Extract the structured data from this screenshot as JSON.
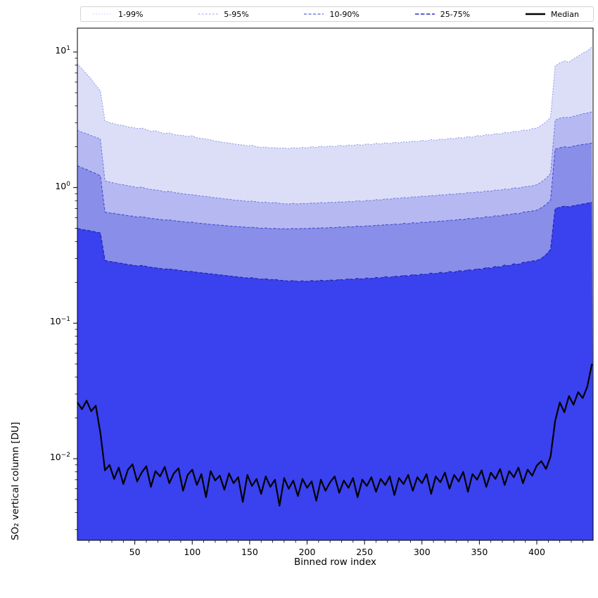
{
  "figure": {
    "background": "#ffffff"
  },
  "legend": {
    "entries": [
      {
        "label": "1-99%",
        "color": "#c6c9f3",
        "dash": "1.5,2.5",
        "width": 1.1
      },
      {
        "label": "5-95%",
        "color": "#9298ea",
        "dash": "2.5,2.5",
        "width": 1.1
      },
      {
        "label": "10-90%",
        "color": "#5b61db",
        "dash": "4,2.5",
        "width": 1.2
      },
      {
        "label": "25-75%",
        "color": "#2a30c0",
        "dash": "5.5,2.5",
        "width": 1.4
      },
      {
        "label": "Median",
        "color": "#000000",
        "dash": "",
        "width": 2.6
      }
    ]
  },
  "axes": {
    "xlabel": "Binned row index",
    "ylabel": "SO₂ vertical column [DU]",
    "xlim": [
      0,
      449
    ],
    "ylim": [
      0.0025,
      15
    ],
    "xticks": [
      50,
      100,
      150,
      200,
      250,
      300,
      350,
      400
    ],
    "x_minor_step": 10,
    "yticks": [
      {
        "value": 10,
        "exp": "1"
      },
      {
        "value": 1,
        "exp": "0"
      },
      {
        "value": 0.1,
        "exp": "−1"
      },
      {
        "value": 0.01,
        "exp": "−2"
      }
    ]
  },
  "chart_data": {
    "type": "area",
    "title": "",
    "xlabel": "Binned row index",
    "ylabel": "SO₂ vertical column [DU]",
    "yscale": "log",
    "xlim": [
      0,
      449
    ],
    "ylim": [
      0.0025,
      15
    ],
    "legend_position": "top",
    "x": [
      0,
      4,
      8,
      12,
      16,
      20,
      24,
      28,
      32,
      36,
      40,
      44,
      48,
      52,
      56,
      60,
      64,
      68,
      72,
      76,
      80,
      84,
      88,
      92,
      96,
      100,
      104,
      108,
      112,
      116,
      120,
      124,
      128,
      132,
      136,
      140,
      144,
      148,
      152,
      156,
      160,
      164,
      168,
      172,
      176,
      180,
      184,
      188,
      192,
      196,
      200,
      204,
      208,
      212,
      216,
      220,
      224,
      228,
      232,
      236,
      240,
      244,
      248,
      252,
      256,
      260,
      264,
      268,
      272,
      276,
      280,
      284,
      288,
      292,
      296,
      300,
      304,
      308,
      312,
      316,
      320,
      324,
      328,
      332,
      336,
      340,
      344,
      348,
      352,
      356,
      360,
      364,
      368,
      372,
      376,
      380,
      384,
      388,
      392,
      396,
      400,
      404,
      408,
      412,
      416,
      420,
      424,
      428,
      432,
      436,
      440,
      444,
      448
    ],
    "series": [
      {
        "name": "1-99%",
        "kind": "band_upper",
        "fill": "#dcdef8",
        "stroke": "#8f94e8",
        "dash": "2,2",
        "width": 1.0,
        "values": [
          8.2,
          7.5,
          6.9,
          6.3,
          5.7,
          5.15,
          3.1,
          3.02,
          2.96,
          2.9,
          2.87,
          2.8,
          2.78,
          2.72,
          2.75,
          2.68,
          2.6,
          2.63,
          2.55,
          2.5,
          2.53,
          2.46,
          2.44,
          2.42,
          2.38,
          2.41,
          2.33,
          2.3,
          2.28,
          2.25,
          2.2,
          2.18,
          2.15,
          2.13,
          2.1,
          2.08,
          2.06,
          2.03,
          2.05,
          2.0,
          1.98,
          1.99,
          1.96,
          1.97,
          1.95,
          1.96,
          1.94,
          1.97,
          1.95,
          1.98,
          1.96,
          2.0,
          1.98,
          2.02,
          1.99,
          2.03,
          2.0,
          2.05,
          2.02,
          2.06,
          2.04,
          2.08,
          2.05,
          2.1,
          2.07,
          2.12,
          2.09,
          2.14,
          2.11,
          2.16,
          2.13,
          2.18,
          2.16,
          2.2,
          2.18,
          2.23,
          2.2,
          2.26,
          2.23,
          2.28,
          2.26,
          2.31,
          2.29,
          2.34,
          2.32,
          2.38,
          2.35,
          2.42,
          2.4,
          2.46,
          2.44,
          2.5,
          2.48,
          2.55,
          2.53,
          2.6,
          2.58,
          2.66,
          2.64,
          2.72,
          2.75,
          2.88,
          3.05,
          3.3,
          7.9,
          8.3,
          8.6,
          8.4,
          8.9,
          9.3,
          9.8,
          10.2,
          10.9
        ]
      },
      {
        "name": "5-95%",
        "kind": "band_upper",
        "fill": "#b6b9f1",
        "stroke": "#6f75e2",
        "dash": "3,2",
        "width": 1.0,
        "values": [
          2.65,
          2.56,
          2.5,
          2.42,
          2.35,
          2.28,
          1.12,
          1.1,
          1.08,
          1.06,
          1.05,
          1.03,
          1.02,
          1.0,
          1.01,
          0.98,
          0.97,
          0.96,
          0.95,
          0.93,
          0.94,
          0.92,
          0.91,
          0.9,
          0.89,
          0.885,
          0.875,
          0.865,
          0.86,
          0.85,
          0.84,
          0.835,
          0.825,
          0.82,
          0.81,
          0.805,
          0.8,
          0.79,
          0.795,
          0.785,
          0.775,
          0.78,
          0.77,
          0.775,
          0.765,
          0.76,
          0.755,
          0.765,
          0.755,
          0.765,
          0.76,
          0.77,
          0.765,
          0.775,
          0.77,
          0.78,
          0.775,
          0.785,
          0.78,
          0.79,
          0.785,
          0.8,
          0.79,
          0.805,
          0.8,
          0.815,
          0.81,
          0.825,
          0.82,
          0.835,
          0.83,
          0.845,
          0.84,
          0.855,
          0.85,
          0.865,
          0.86,
          0.875,
          0.87,
          0.885,
          0.88,
          0.895,
          0.89,
          0.905,
          0.9,
          0.92,
          0.915,
          0.93,
          0.925,
          0.945,
          0.94,
          0.96,
          0.955,
          0.975,
          0.97,
          0.995,
          0.99,
          1.01,
          1.02,
          1.03,
          1.05,
          1.1,
          1.17,
          1.27,
          3.15,
          3.25,
          3.3,
          3.28,
          3.35,
          3.42,
          3.5,
          3.55,
          3.62
        ]
      },
      {
        "name": "10-90%",
        "kind": "band_upper",
        "fill": "#898ee9",
        "stroke": "#474dd2",
        "dash": "4,2.2",
        "width": 1.1,
        "values": [
          1.45,
          1.4,
          1.36,
          1.31,
          1.27,
          1.22,
          0.66,
          0.65,
          0.645,
          0.635,
          0.63,
          0.62,
          0.615,
          0.605,
          0.61,
          0.6,
          0.592,
          0.588,
          0.582,
          0.575,
          0.578,
          0.57,
          0.565,
          0.56,
          0.555,
          0.556,
          0.548,
          0.544,
          0.54,
          0.535,
          0.532,
          0.528,
          0.525,
          0.52,
          0.518,
          0.515,
          0.512,
          0.508,
          0.51,
          0.505,
          0.5,
          0.503,
          0.498,
          0.5,
          0.496,
          0.498,
          0.495,
          0.5,
          0.496,
          0.5,
          0.498,
          0.503,
          0.5,
          0.505,
          0.502,
          0.508,
          0.505,
          0.512,
          0.508,
          0.515,
          0.512,
          0.52,
          0.515,
          0.523,
          0.52,
          0.528,
          0.525,
          0.533,
          0.53,
          0.538,
          0.535,
          0.545,
          0.54,
          0.55,
          0.546,
          0.556,
          0.552,
          0.562,
          0.558,
          0.568,
          0.565,
          0.576,
          0.572,
          0.583,
          0.58,
          0.592,
          0.588,
          0.6,
          0.596,
          0.61,
          0.606,
          0.62,
          0.616,
          0.632,
          0.628,
          0.645,
          0.64,
          0.658,
          0.664,
          0.672,
          0.68,
          0.71,
          0.75,
          0.81,
          1.92,
          1.96,
          2.0,
          1.98,
          2.02,
          2.05,
          2.08,
          2.1,
          2.13
        ]
      },
      {
        "name": "25-75%",
        "kind": "band_upper",
        "fill": "#3a41ee",
        "stroke": "#2026b4",
        "dash": "5,2.2",
        "width": 1.2,
        "values": [
          0.5,
          0.49,
          0.485,
          0.478,
          0.47,
          0.462,
          0.29,
          0.285,
          0.282,
          0.278,
          0.275,
          0.27,
          0.268,
          0.264,
          0.266,
          0.262,
          0.258,
          0.256,
          0.253,
          0.25,
          0.251,
          0.248,
          0.246,
          0.243,
          0.241,
          0.24,
          0.237,
          0.235,
          0.233,
          0.231,
          0.229,
          0.227,
          0.225,
          0.223,
          0.221,
          0.219,
          0.217,
          0.215,
          0.216,
          0.213,
          0.211,
          0.212,
          0.209,
          0.21,
          0.207,
          0.206,
          0.204,
          0.206,
          0.203,
          0.205,
          0.203,
          0.206,
          0.204,
          0.207,
          0.205,
          0.208,
          0.206,
          0.21,
          0.208,
          0.212,
          0.21,
          0.214,
          0.211,
          0.215,
          0.213,
          0.217,
          0.215,
          0.22,
          0.217,
          0.222,
          0.22,
          0.225,
          0.222,
          0.228,
          0.225,
          0.23,
          0.228,
          0.234,
          0.231,
          0.237,
          0.234,
          0.24,
          0.237,
          0.244,
          0.241,
          0.248,
          0.245,
          0.252,
          0.249,
          0.257,
          0.254,
          0.262,
          0.259,
          0.268,
          0.265,
          0.274,
          0.271,
          0.28,
          0.283,
          0.287,
          0.29,
          0.3,
          0.32,
          0.35,
          0.7,
          0.715,
          0.73,
          0.72,
          0.735,
          0.745,
          0.755,
          0.765,
          0.78
        ]
      },
      {
        "name": "Median",
        "kind": "line",
        "stroke": "#000000",
        "width": 2.2,
        "values": [
          0.026,
          0.0232,
          0.0268,
          0.0224,
          0.0246,
          0.0155,
          0.0082,
          0.009,
          0.0071,
          0.0086,
          0.0065,
          0.0083,
          0.0091,
          0.0068,
          0.0079,
          0.0088,
          0.0062,
          0.0081,
          0.0074,
          0.0087,
          0.0066,
          0.0078,
          0.0085,
          0.0058,
          0.0076,
          0.0083,
          0.0064,
          0.0077,
          0.0052,
          0.0081,
          0.0069,
          0.0075,
          0.0059,
          0.0078,
          0.0066,
          0.0073,
          0.0048,
          0.0076,
          0.0063,
          0.0071,
          0.0055,
          0.0074,
          0.0062,
          0.007,
          0.0045,
          0.0072,
          0.006,
          0.0069,
          0.0053,
          0.0071,
          0.0061,
          0.0068,
          0.0049,
          0.007,
          0.0058,
          0.0067,
          0.0074,
          0.0056,
          0.0069,
          0.0061,
          0.0072,
          0.0052,
          0.007,
          0.0063,
          0.0073,
          0.0057,
          0.0071,
          0.0064,
          0.0074,
          0.0054,
          0.0072,
          0.0065,
          0.0076,
          0.0058,
          0.0073,
          0.0066,
          0.0077,
          0.0055,
          0.0074,
          0.0067,
          0.0079,
          0.006,
          0.0076,
          0.0068,
          0.008,
          0.0057,
          0.0077,
          0.007,
          0.0082,
          0.0062,
          0.0079,
          0.0071,
          0.0084,
          0.0064,
          0.0081,
          0.0073,
          0.0086,
          0.0066,
          0.0083,
          0.0075,
          0.0089,
          0.0096,
          0.0084,
          0.0104,
          0.019,
          0.026,
          0.022,
          0.029,
          0.025,
          0.031,
          0.028,
          0.034,
          0.05
        ]
      }
    ]
  }
}
